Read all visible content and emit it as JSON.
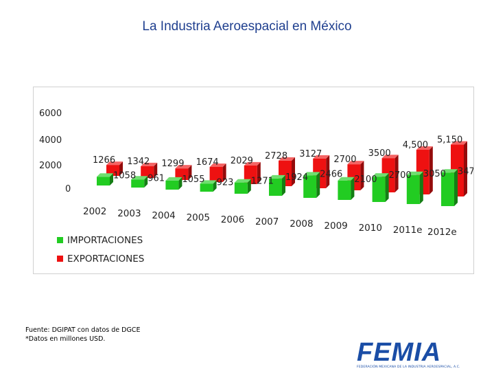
{
  "slide": {
    "title": "La Industria Aeroespacial en México"
  },
  "chart_data": {
    "type": "bar",
    "title": "",
    "categories": [
      "2002",
      "2003",
      "2004",
      "2005",
      "2006",
      "2007",
      "2008",
      "2009",
      "2010",
      "2011e",
      "2012e"
    ],
    "series": [
      {
        "name": "IMPORTACIONES",
        "color": "#22cc22",
        "values": [
          1058,
          961,
          1055,
          923,
          1271,
          1924,
          2466,
          2100,
          2700,
          3050,
          3470
        ],
        "labels": [
          "1058",
          "961",
          "1055",
          "923",
          "1271",
          "1924",
          "2466",
          "2100",
          "2700",
          "3050",
          "3470"
        ]
      },
      {
        "name": "EXPORTACIONES",
        "color": "#ee1111",
        "values": [
          1266,
          1342,
          1299,
          1674,
          2029,
          2728,
          3127,
          2700,
          3500,
          4500,
          5150
        ],
        "labels": [
          "1266",
          "1342",
          "1299",
          "1674",
          "2029",
          "2728",
          "3127",
          "2700",
          "3500",
          "4,500",
          "5,150"
        ]
      }
    ],
    "y_ticks": [
      "0",
      "2000",
      "4000",
      "6000"
    ],
    "ylim": [
      0,
      6000
    ],
    "legend_position": "bottom-left"
  },
  "footnotes": {
    "source": "Fuente: DGIPAT con datos de DGCE",
    "units": "*Datos en millones USD."
  },
  "logo": {
    "name": "FEMIA",
    "subtitle": "FEDERACIÓN MEXICANA DE LA INDUSTRIA AEROESPACIAL, A.C."
  }
}
